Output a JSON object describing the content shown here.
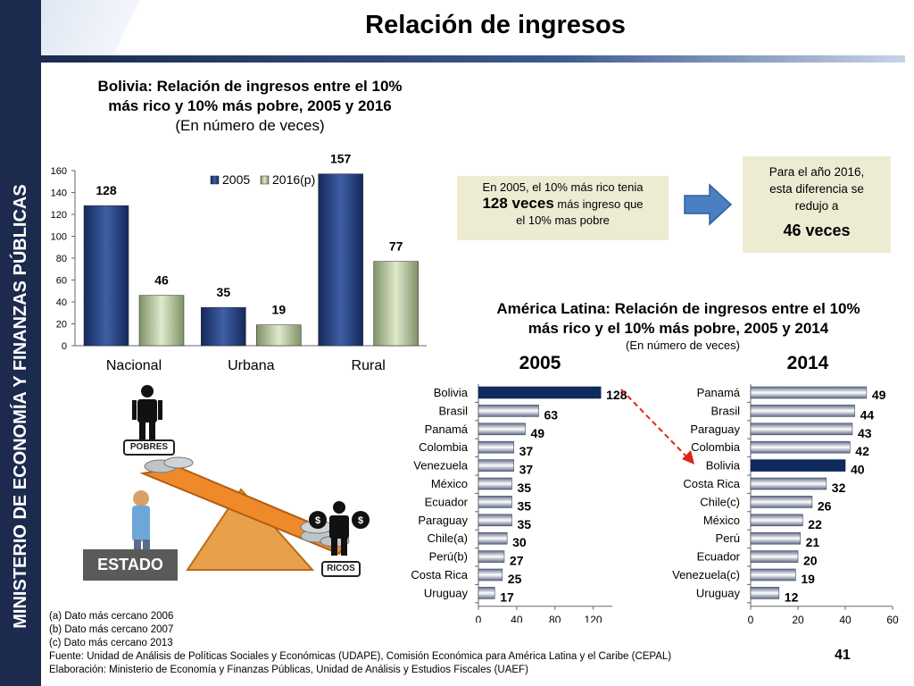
{
  "sidebar": {
    "text": "MINISTERIO DE ECONOMÍA Y FINANZAS PÚBLICAS"
  },
  "header": {
    "title": "Relación de ingresos"
  },
  "bolivia_chart_title": {
    "line1": "Bolivia: Relación de ingresos entre el 10%",
    "line2": "más rico y 10% más pobre, 2005 y 2016",
    "line3": "(En número de veces)"
  },
  "callouts": {
    "box_2005": {
      "pre": "En 2005, el 10% más rico tenia",
      "big": "128 veces",
      "post1": " más ingreso que",
      "post2": "el 10% mas pobre"
    },
    "box_2016": {
      "line1": "Para el año 2016,",
      "line2": "esta diferencia se",
      "line3": "redujo a",
      "big": "46 veces"
    },
    "arrow_color": "#4a7fc1"
  },
  "latam_title": {
    "line1": "América Latina: Relación de ingresos entre el 10%",
    "line2": "más rico y el 10% más pobre, 2005 y 2014",
    "line3": "(En número de veces)"
  },
  "illustration": {
    "estado_label": "ESTADO",
    "pobres_label": "POBRES",
    "ricos_label": "RICOS"
  },
  "notes": {
    "a": "(a) Dato más cercano 2006",
    "b": "(b) Dato más cercano 2007",
    "c": "(c) Dato más cercano 2013",
    "fuente": "Fuente: Unidad de Análisis de Políticas Sociales y Económicas (UDAPE), Comisión Económica para América Latina y el Caribe (CEPAL)",
    "elaboracion": "Elaboración: Ministerio de Economía y Finanzas Públicas, Unidad de Análisis y Estudios Fiscales (UAEF)"
  },
  "page_number": "41",
  "colors": {
    "navy": "#1b2a4d",
    "bar_2005": "#1f3a78",
    "bar_2016": "#a9b88f",
    "highlight": "#0f2a5c",
    "callout_bg": "#eeebd3",
    "dashed_arrow": "#e0231c"
  },
  "chart_data": [
    {
      "type": "bar",
      "categories": [
        "Nacional",
        "Urbana",
        "Rural"
      ],
      "series": [
        {
          "name": "2005",
          "values": [
            128,
            35,
            157
          ]
        },
        {
          "name": "2016(p)",
          "values": [
            46,
            19,
            77
          ]
        }
      ],
      "ylim": [
        0,
        160
      ],
      "yticks": [
        "0",
        "20",
        "40",
        "60",
        "80",
        "100",
        "120",
        "140",
        "160"
      ],
      "legend": "top"
    },
    {
      "type": "bar",
      "orientation": "horizontal",
      "title": "2005",
      "categories": [
        "Bolivia",
        "Brasil",
        "Panamá",
        "Colombia",
        "Venezuela",
        "México",
        "Ecuador",
        "Paraguay",
        "Chile(a)",
        "Perú(b)",
        "Costa Rica",
        "Uruguay"
      ],
      "values": [
        128,
        63,
        49,
        37,
        37,
        35,
        35,
        35,
        30,
        27,
        25,
        17
      ],
      "highlight": "Bolivia",
      "xlim": [
        0,
        140
      ],
      "xticks": [
        "0",
        "40",
        "80",
        "120"
      ]
    },
    {
      "type": "bar",
      "orientation": "horizontal",
      "title": "2014",
      "categories": [
        "Panamá",
        "Brasil",
        "Paraguay",
        "Colombia",
        "Bolivia",
        "Costa Rica",
        "Chile(c)",
        "México",
        "Perú",
        "Ecuador",
        "Venezuela(c)",
        "Uruguay"
      ],
      "values": [
        49,
        44,
        43,
        42,
        40,
        32,
        26,
        22,
        21,
        20,
        19,
        12
      ],
      "highlight": "Bolivia",
      "xlim": [
        0,
        60
      ],
      "xticks": [
        "0",
        "20",
        "40",
        "60"
      ]
    }
  ]
}
